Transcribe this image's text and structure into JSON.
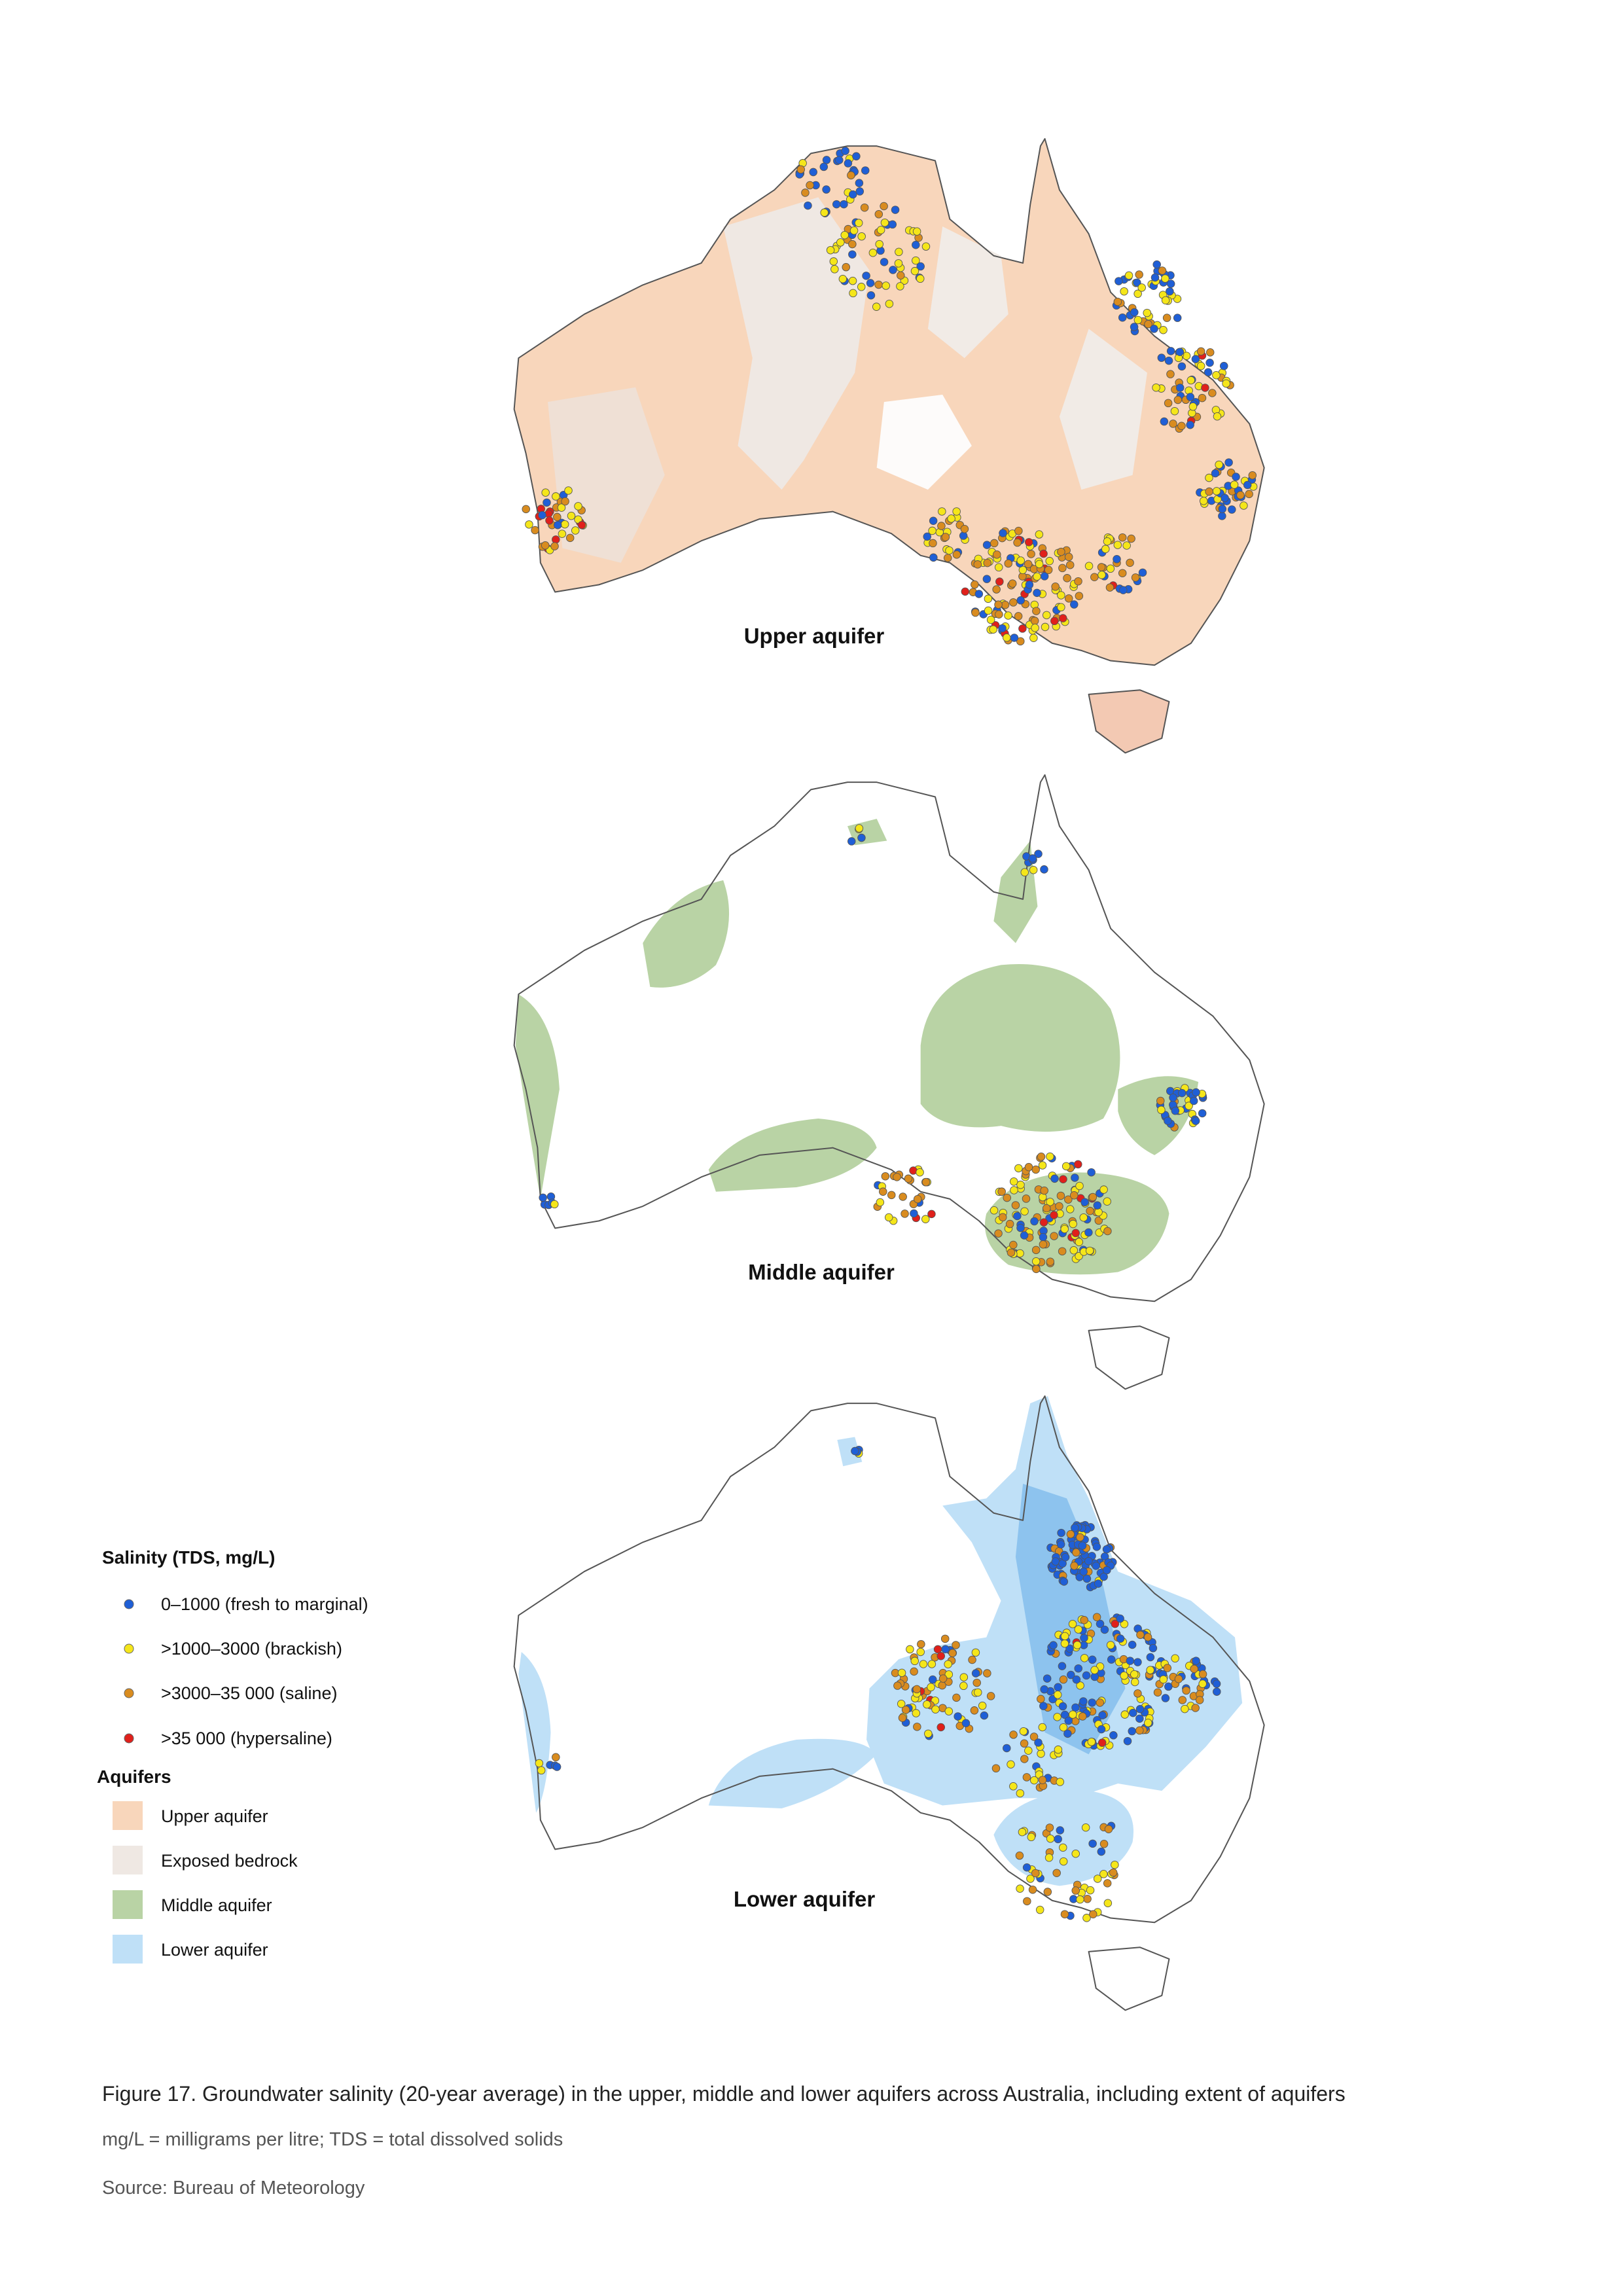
{
  "maps": [
    {
      "label": "Upper aquifer"
    },
    {
      "label": "Middle aquifer"
    },
    {
      "label": "Lower aquifer"
    }
  ],
  "legend": {
    "salinity_title": "Salinity (TDS, mg/L)",
    "salinity_classes": [
      "0–1000 (fresh to marginal)",
      ">1000–3000 (brackish)",
      ">3000–35 000 (saline)",
      ">35 000 (hypersaline)"
    ],
    "aquifers_title": "Aquifers",
    "aquifer_types": [
      "Upper aquifer",
      "Exposed bedrock",
      "Middle aquifer",
      "Lower aquifer"
    ]
  },
  "caption": {
    "figure": "Figure 17. Groundwater salinity (20-year average) in the upper, middle and lower aquifers across Australia, including extent of aquifers",
    "note": "mg/L = milligrams per litre; TDS = total dissolved solids",
    "source": "Source: Bureau of Meteorology"
  }
}
